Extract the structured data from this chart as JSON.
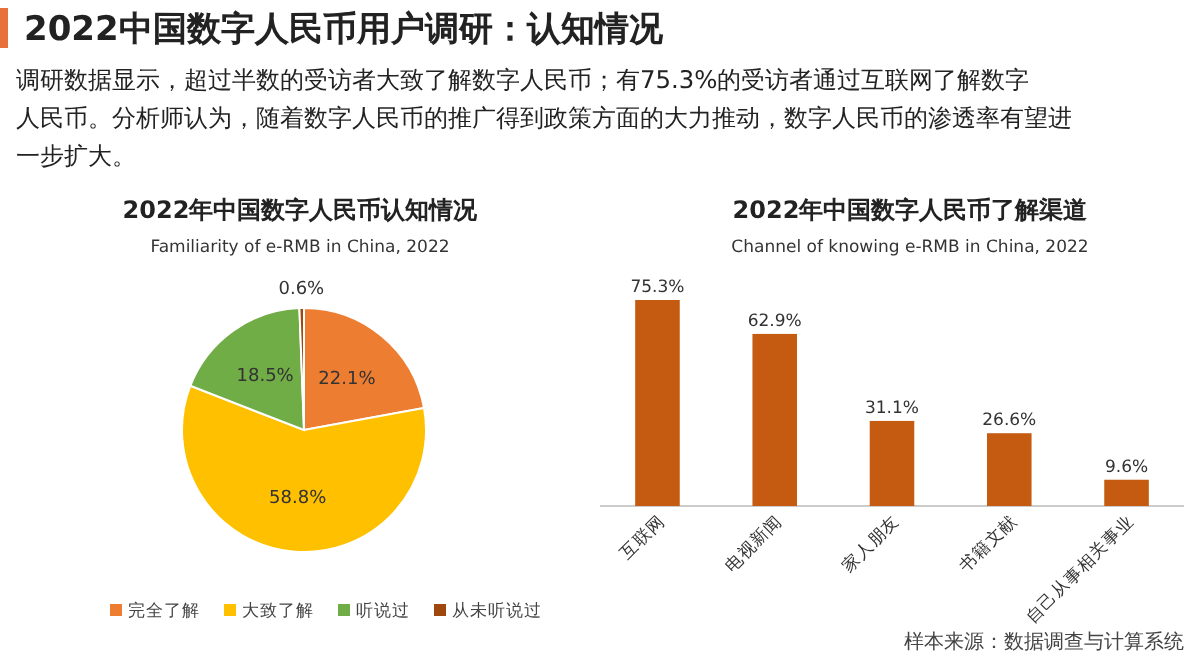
{
  "chart_data": [
    {
      "type": "other",
      "title": "2022中国数字人民币用户调研：认知情况",
      "annotations": [
        "调研数据显示，超过半数的受访者大致了解数字人民币；有75.3%的受访者通过互联网了解数字人民币。分析师认为，随着数字人民币的推广得到政策方面的大力推动，数字人民币的渗透率有望进一步扩大。",
        "样本来源：数据调查与计算系统"
      ]
    },
    {
      "type": "pie",
      "title": "2022年中国数字人民币认知情况",
      "subtitle": "Familiarity of e-RMB in China, 2022",
      "categories": [
        "完全了解",
        "大致了解",
        "听说过",
        "从未听说过"
      ],
      "values": [
        22.1,
        58.8,
        18.5,
        0.6
      ],
      "value_labels": [
        "22.1%",
        "58.8%",
        "18.5%",
        "0.6%"
      ],
      "colors": [
        "#ed7d31",
        "#ffc000",
        "#70ad47",
        "#9e480e"
      ],
      "legend": "bottom"
    },
    {
      "type": "bar",
      "title": "2022年中国数字人民币了解渠道",
      "subtitle": "Channel of knowing e-RMB in China, 2022",
      "categories": [
        "互联网",
        "电视新闻",
        "家人朋友",
        "书籍文献",
        "自己从事相关事业"
      ],
      "values": [
        75.3,
        62.9,
        31.1,
        26.6,
        9.6
      ],
      "value_labels": [
        "75.3%",
        "62.9%",
        "31.1%",
        "26.6%",
        "9.6%"
      ],
      "color": "#c55a11"
    }
  ]
}
